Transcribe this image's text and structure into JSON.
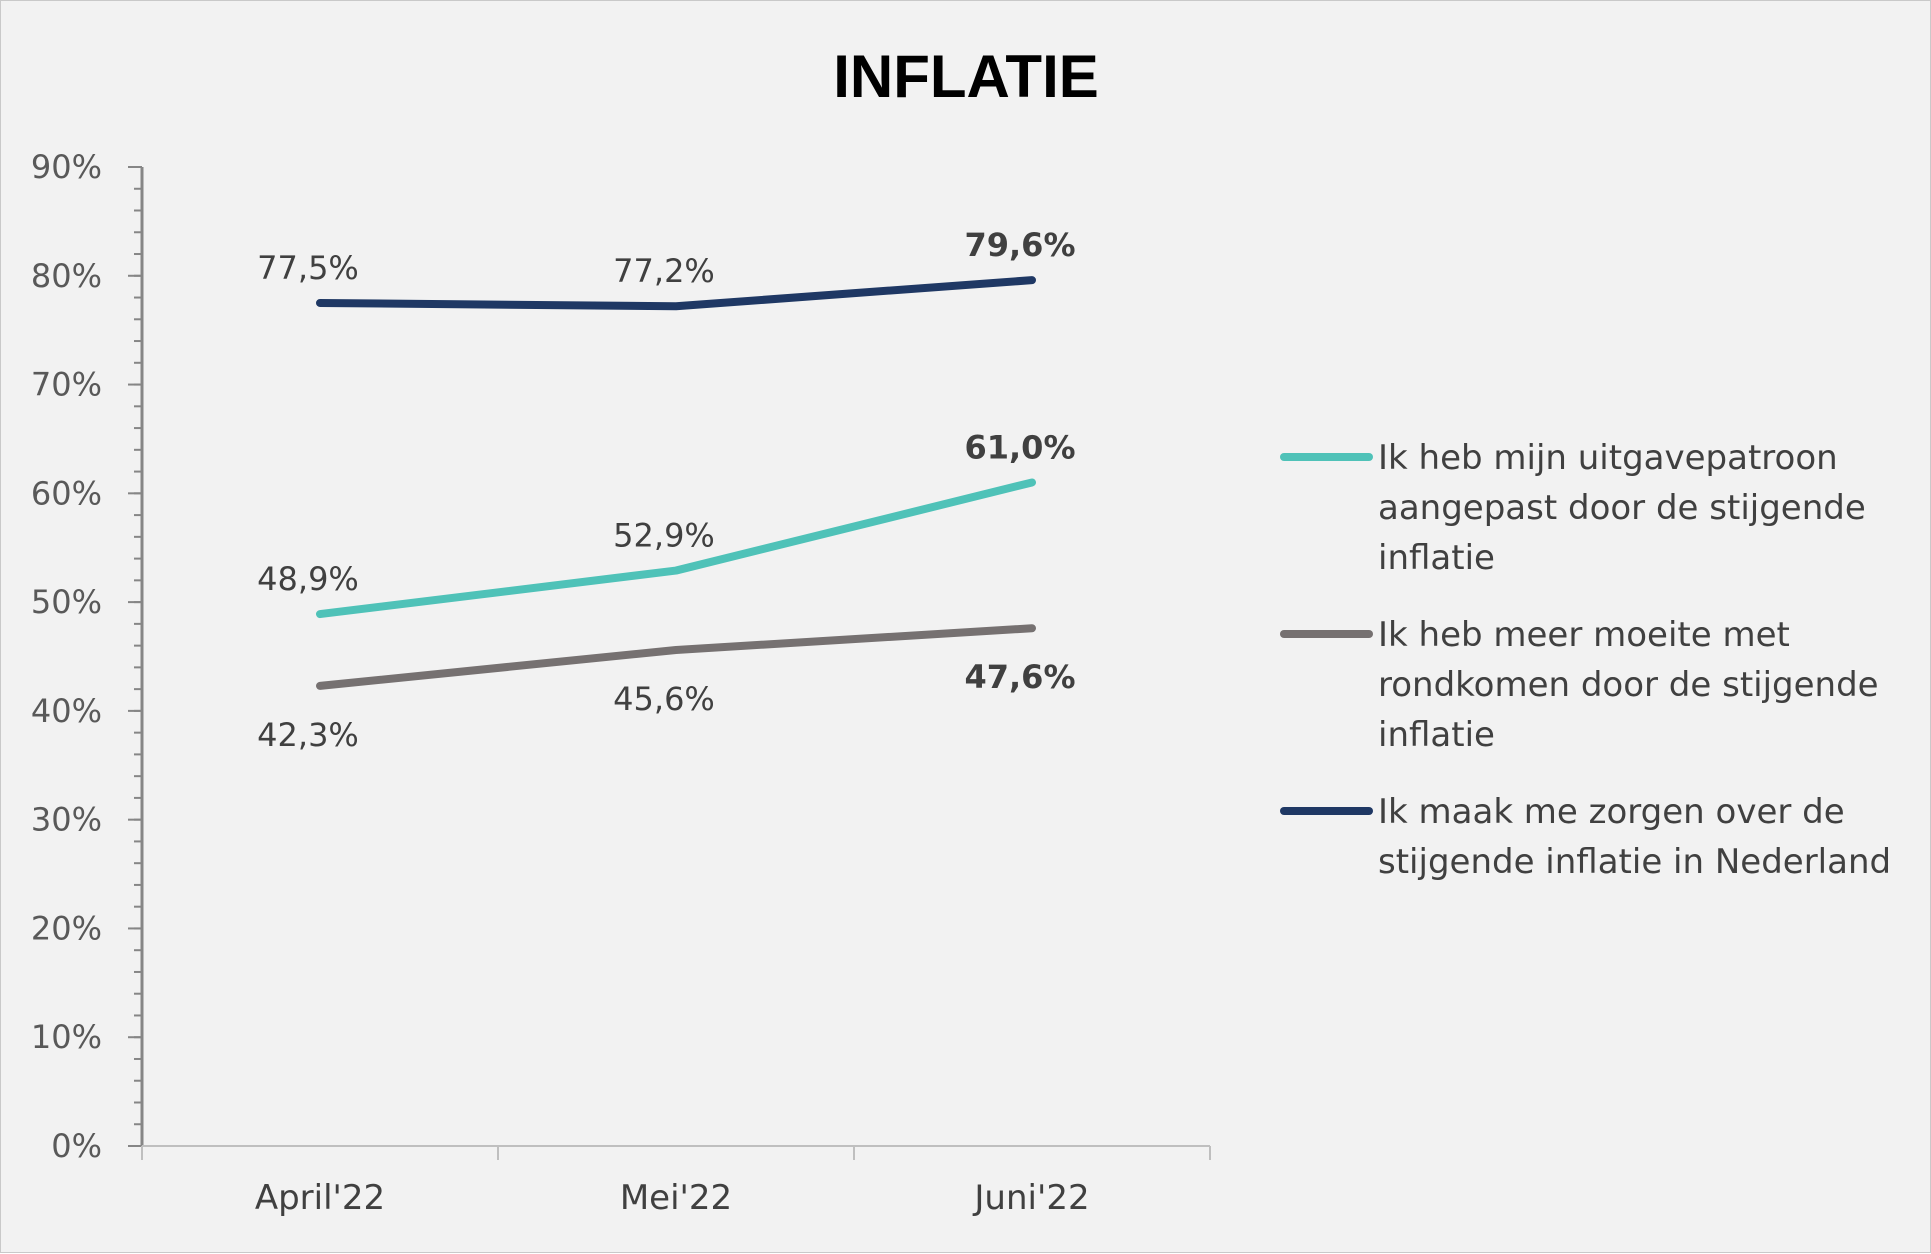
{
  "chart_data": {
    "type": "line",
    "title": "INFLATIE",
    "xlabel": "",
    "ylabel": "",
    "categories": [
      "April'22",
      "Mei'22",
      "Juni'22"
    ],
    "ylim": [
      0,
      90
    ],
    "y_ticks": [
      "0%",
      "10%",
      "20%",
      "30%",
      "40%",
      "50%",
      "60%",
      "70%",
      "80%",
      "90%"
    ],
    "grid": false,
    "legend_position": "right",
    "series": [
      {
        "name": "Ik heb mijn uitgavepatroon aangepast door de stijgende inflatie",
        "legend_lines": [
          "Ik heb mijn uitgavepatroon",
          "aangepast door de stijgende",
          "inflatie"
        ],
        "color": "#4fc2b8",
        "values": [
          48.9,
          52.9,
          61.0
        ],
        "labels": [
          "48,9%",
          "52,9%",
          "61,0%"
        ]
      },
      {
        "name": "Ik heb meer moeite met rondkomen door de stijgende inflatie",
        "legend_lines": [
          "Ik heb meer moeite met",
          "rondkomen door de stijgende",
          "inflatie"
        ],
        "color": "#767171",
        "values": [
          42.3,
          45.6,
          47.6
        ],
        "labels": [
          "42,3%",
          "45,6%",
          "47,6%"
        ]
      },
      {
        "name": "Ik maak me zorgen over de stijgende inflatie in Nederland",
        "legend_lines": [
          "Ik maak me zorgen over de",
          "stijgende inflatie in Nederland"
        ],
        "color": "#1f3864",
        "values": [
          77.5,
          77.2,
          79.6
        ],
        "labels": [
          "77,5%",
          "77,2%",
          "79,6%"
        ]
      }
    ]
  }
}
